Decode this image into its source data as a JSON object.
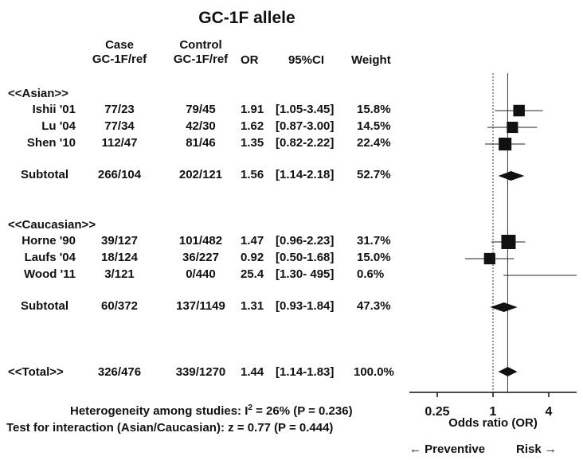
{
  "chart_data": {
    "type": "forest",
    "title": "GC-1F allele",
    "headers": {
      "case": [
        "Case",
        "GC-1F/ref"
      ],
      "control": [
        "Control",
        "GC-1F/ref"
      ],
      "or": "OR",
      "ci": "95%CI",
      "weight": "Weight"
    },
    "groups": [
      {
        "label": "<<Asian>>",
        "studies": [
          {
            "study": "Ishii '01",
            "case": "77/23",
            "control": "79/45",
            "or_text": "1.91",
            "ci_text": "[1.05-3.45]",
            "weight_text": "15.8%",
            "or": 1.91,
            "lo": 1.05,
            "hi": 3.45,
            "weight": 15.8
          },
          {
            "study": "Lu '04",
            "case": "77/34",
            "control": "42/30",
            "or_text": "1.62",
            "ci_text": "[0.87-3.00]",
            "weight_text": "14.5%",
            "or": 1.62,
            "lo": 0.87,
            "hi": 3.0,
            "weight": 14.5
          },
          {
            "study": "Shen '10",
            "case": "112/47",
            "control": "81/46",
            "or_text": "1.35",
            "ci_text": "[0.82-2.22]",
            "weight_text": "22.4%",
            "or": 1.35,
            "lo": 0.82,
            "hi": 2.22,
            "weight": 22.4
          }
        ],
        "subtotal": {
          "label": "Subtotal",
          "case": "266/104",
          "control": "202/121",
          "or_text": "1.56",
          "ci_text": "[1.14-2.18]",
          "weight_text": "52.7%",
          "or": 1.56,
          "lo": 1.14,
          "hi": 2.18
        }
      },
      {
        "label": "<<Caucasian>>",
        "studies": [
          {
            "study": "Horne '90",
            "case": "39/127",
            "control": "101/482",
            "or_text": "1.47",
            "ci_text": "[0.96-2.23]",
            "weight_text": "31.7%",
            "or": 1.47,
            "lo": 0.96,
            "hi": 2.23,
            "weight": 31.7
          },
          {
            "study": "Laufs '04",
            "case": "18/124",
            "control": "36/227",
            "or_text": "0.92",
            "ci_text": "[0.50-1.68]",
            "weight_text": "15.0%",
            "or": 0.92,
            "lo": 0.5,
            "hi": 1.68,
            "weight": 15.0
          },
          {
            "study": "Wood '11",
            "case": "3/121",
            "control": "0/440",
            "or_text": "25.4",
            "ci_text": "[1.30- 495]",
            "weight_text": "0.6%",
            "or": 25.4,
            "lo": 1.3,
            "hi": 495,
            "weight": 0.6
          }
        ],
        "subtotal": {
          "label": "Subtotal",
          "case": "60/372",
          "control": "137/1149",
          "or_text": "1.31",
          "ci_text": "[0.93-1.84]",
          "weight_text": "47.3%",
          "or": 1.31,
          "lo": 0.93,
          "hi": 1.84
        }
      }
    ],
    "total": {
      "label": "<<Total>>",
      "case": "326/476",
      "control": "339/1270",
      "or_text": "1.44",
      "ci_text": "[1.14-1.83]",
      "weight_text": "100.0%",
      "or": 1.44,
      "lo": 1.14,
      "hi": 1.83
    },
    "heterogeneity": {
      "prefix": "Heterogeneity among studies: I",
      "sup": "2",
      "suffix": "= 26% (P = 0.236)"
    },
    "interaction": "Test for interaction (Asian/Caucasian): z = 0.77 (P = 0.444)",
    "x_axis": {
      "label": "Odds ratio (OR)",
      "scale": "log",
      "ticks": [
        0.25,
        1,
        4
      ],
      "tick_labels": [
        "0.25",
        "1",
        "4"
      ],
      "range": [
        0.125,
        8
      ],
      "reference": 1,
      "pooled_reference": 1.44
    },
    "direction": {
      "left": "← Preventive",
      "right": "Risk →"
    }
  }
}
